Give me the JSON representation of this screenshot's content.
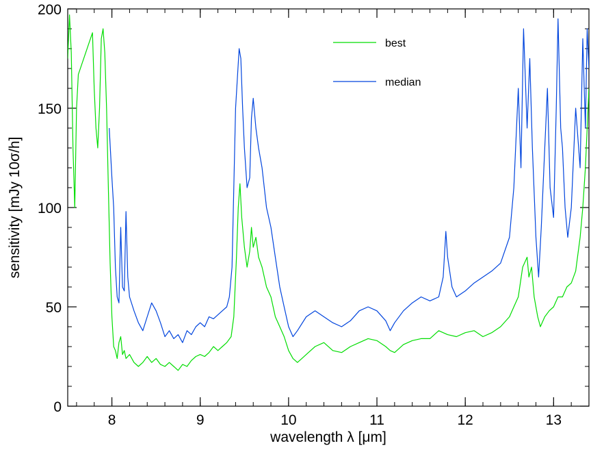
{
  "chart_data": {
    "type": "line",
    "title": "",
    "xlabel": "wavelength λ [μm]",
    "ylabel": "sensitivity [mJy 10σ/h]",
    "xlim": [
      7.5,
      13.4
    ],
    "ylim": [
      0,
      200
    ],
    "x_ticks": [
      8,
      9,
      10,
      11,
      12,
      13
    ],
    "y_ticks": [
      0,
      50,
      100,
      150,
      200
    ],
    "x_minor_step": 0.2,
    "y_minor_step": 10,
    "grid": false,
    "legend": {
      "placement": "top-center"
    },
    "series": [
      {
        "name": "best",
        "color": "#00dd00",
        "points": [
          [
            7.5,
            175
          ],
          [
            7.52,
            197
          ],
          [
            7.54,
            178
          ],
          [
            7.56,
            130
          ],
          [
            7.58,
            100
          ],
          [
            7.6,
            150
          ],
          [
            7.62,
            167
          ],
          [
            7.78,
            188
          ],
          [
            7.8,
            160
          ],
          [
            7.82,
            140
          ],
          [
            7.84,
            130
          ],
          [
            7.86,
            150
          ],
          [
            7.88,
            185
          ],
          [
            7.9,
            190
          ],
          [
            7.92,
            178
          ],
          [
            7.94,
            150
          ],
          [
            7.96,
            110
          ],
          [
            7.98,
            72
          ],
          [
            8.0,
            45
          ],
          [
            8.02,
            30
          ],
          [
            8.04,
            28
          ],
          [
            8.06,
            24
          ],
          [
            8.08,
            32
          ],
          [
            8.1,
            35
          ],
          [
            8.12,
            26
          ],
          [
            8.14,
            28
          ],
          [
            8.16,
            24
          ],
          [
            8.2,
            26
          ],
          [
            8.25,
            22
          ],
          [
            8.3,
            20
          ],
          [
            8.35,
            22
          ],
          [
            8.4,
            25
          ],
          [
            8.45,
            22
          ],
          [
            8.5,
            24
          ],
          [
            8.55,
            21
          ],
          [
            8.6,
            20
          ],
          [
            8.65,
            22
          ],
          [
            8.7,
            20
          ],
          [
            8.75,
            18
          ],
          [
            8.8,
            21
          ],
          [
            8.85,
            20
          ],
          [
            8.9,
            23
          ],
          [
            8.95,
            25
          ],
          [
            9.0,
            26
          ],
          [
            9.05,
            25
          ],
          [
            9.1,
            27
          ],
          [
            9.15,
            30
          ],
          [
            9.2,
            28
          ],
          [
            9.25,
            30
          ],
          [
            9.3,
            32
          ],
          [
            9.35,
            35
          ],
          [
            9.38,
            45
          ],
          [
            9.41,
            75
          ],
          [
            9.43,
            100
          ],
          [
            9.45,
            112
          ],
          [
            9.47,
            95
          ],
          [
            9.5,
            80
          ],
          [
            9.53,
            70
          ],
          [
            9.56,
            78
          ],
          [
            9.58,
            90
          ],
          [
            9.6,
            80
          ],
          [
            9.63,
            85
          ],
          [
            9.66,
            75
          ],
          [
            9.7,
            70
          ],
          [
            9.75,
            60
          ],
          [
            9.8,
            55
          ],
          [
            9.85,
            45
          ],
          [
            9.9,
            40
          ],
          [
            9.95,
            35
          ],
          [
            10.0,
            28
          ],
          [
            10.05,
            24
          ],
          [
            10.1,
            22
          ],
          [
            10.15,
            24
          ],
          [
            10.2,
            26
          ],
          [
            10.3,
            30
          ],
          [
            10.4,
            32
          ],
          [
            10.5,
            28
          ],
          [
            10.6,
            27
          ],
          [
            10.7,
            30
          ],
          [
            10.8,
            32
          ],
          [
            10.9,
            34
          ],
          [
            11.0,
            33
          ],
          [
            11.1,
            30
          ],
          [
            11.15,
            28
          ],
          [
            11.2,
            27
          ],
          [
            11.3,
            31
          ],
          [
            11.4,
            33
          ],
          [
            11.5,
            34
          ],
          [
            11.6,
            34
          ],
          [
            11.7,
            38
          ],
          [
            11.8,
            36
          ],
          [
            11.9,
            35
          ],
          [
            12.0,
            37
          ],
          [
            12.1,
            38
          ],
          [
            12.2,
            35
          ],
          [
            12.3,
            37
          ],
          [
            12.4,
            40
          ],
          [
            12.5,
            45
          ],
          [
            12.55,
            50
          ],
          [
            12.6,
            55
          ],
          [
            12.65,
            70
          ],
          [
            12.7,
            75
          ],
          [
            12.72,
            65
          ],
          [
            12.75,
            70
          ],
          [
            12.78,
            55
          ],
          [
            12.82,
            45
          ],
          [
            12.85,
            40
          ],
          [
            12.9,
            45
          ],
          [
            12.95,
            48
          ],
          [
            13.0,
            50
          ],
          [
            13.05,
            55
          ],
          [
            13.1,
            55
          ],
          [
            13.15,
            60
          ],
          [
            13.2,
            62
          ],
          [
            13.25,
            68
          ],
          [
            13.3,
            85
          ],
          [
            13.33,
            100
          ],
          [
            13.36,
            120
          ],
          [
            13.39,
            150
          ],
          [
            13.4,
            160
          ]
        ]
      },
      {
        "name": "median",
        "color": "#0044dd",
        "points": [
          [
            7.97,
            140
          ],
          [
            8.0,
            115
          ],
          [
            8.02,
            100
          ],
          [
            8.04,
            70
          ],
          [
            8.06,
            55
          ],
          [
            8.08,
            52
          ],
          [
            8.1,
            90
          ],
          [
            8.12,
            60
          ],
          [
            8.14,
            58
          ],
          [
            8.16,
            98
          ],
          [
            8.18,
            65
          ],
          [
            8.2,
            55
          ],
          [
            8.25,
            48
          ],
          [
            8.3,
            42
          ],
          [
            8.35,
            38
          ],
          [
            8.4,
            45
          ],
          [
            8.45,
            52
          ],
          [
            8.5,
            48
          ],
          [
            8.55,
            42
          ],
          [
            8.6,
            35
          ],
          [
            8.65,
            38
          ],
          [
            8.7,
            34
          ],
          [
            8.75,
            36
          ],
          [
            8.8,
            32
          ],
          [
            8.85,
            38
          ],
          [
            8.9,
            36
          ],
          [
            8.95,
            40
          ],
          [
            9.0,
            42
          ],
          [
            9.05,
            40
          ],
          [
            9.1,
            45
          ],
          [
            9.15,
            44
          ],
          [
            9.2,
            46
          ],
          [
            9.25,
            48
          ],
          [
            9.3,
            50
          ],
          [
            9.33,
            55
          ],
          [
            9.36,
            70
          ],
          [
            9.38,
            110
          ],
          [
            9.4,
            150
          ],
          [
            9.42,
            165
          ],
          [
            9.44,
            180
          ],
          [
            9.46,
            175
          ],
          [
            9.48,
            150
          ],
          [
            9.5,
            130
          ],
          [
            9.53,
            110
          ],
          [
            9.56,
            115
          ],
          [
            9.58,
            145
          ],
          [
            9.6,
            155
          ],
          [
            9.63,
            140
          ],
          [
            9.66,
            130
          ],
          [
            9.7,
            120
          ],
          [
            9.75,
            100
          ],
          [
            9.8,
            90
          ],
          [
            9.85,
            75
          ],
          [
            9.9,
            60
          ],
          [
            9.95,
            50
          ],
          [
            10.0,
            40
          ],
          [
            10.05,
            35
          ],
          [
            10.1,
            38
          ],
          [
            10.2,
            45
          ],
          [
            10.3,
            48
          ],
          [
            10.4,
            45
          ],
          [
            10.5,
            42
          ],
          [
            10.6,
            40
          ],
          [
            10.7,
            43
          ],
          [
            10.8,
            48
          ],
          [
            10.9,
            50
          ],
          [
            11.0,
            48
          ],
          [
            11.1,
            43
          ],
          [
            11.15,
            38
          ],
          [
            11.2,
            42
          ],
          [
            11.3,
            48
          ],
          [
            11.4,
            52
          ],
          [
            11.5,
            55
          ],
          [
            11.6,
            53
          ],
          [
            11.7,
            55
          ],
          [
            11.75,
            65
          ],
          [
            11.78,
            88
          ],
          [
            11.8,
            75
          ],
          [
            11.85,
            60
          ],
          [
            11.9,
            55
          ],
          [
            12.0,
            58
          ],
          [
            12.1,
            62
          ],
          [
            12.2,
            65
          ],
          [
            12.3,
            68
          ],
          [
            12.4,
            72
          ],
          [
            12.5,
            85
          ],
          [
            12.55,
            110
          ],
          [
            12.58,
            140
          ],
          [
            12.6,
            160
          ],
          [
            12.63,
            120
          ],
          [
            12.66,
            190
          ],
          [
            12.7,
            140
          ],
          [
            12.73,
            175
          ],
          [
            12.76,
            130
          ],
          [
            12.8,
            85
          ],
          [
            12.83,
            65
          ],
          [
            12.86,
            90
          ],
          [
            12.9,
            130
          ],
          [
            12.93,
            160
          ],
          [
            12.96,
            110
          ],
          [
            13.0,
            95
          ],
          [
            13.03,
            150
          ],
          [
            13.05,
            195
          ],
          [
            13.08,
            140
          ],
          [
            13.1,
            130
          ],
          [
            13.13,
            100
          ],
          [
            13.16,
            85
          ],
          [
            13.2,
            100
          ],
          [
            13.25,
            150
          ],
          [
            13.3,
            120
          ],
          [
            13.33,
            185
          ],
          [
            13.36,
            140
          ],
          [
            13.38,
            190
          ],
          [
            13.4,
            170
          ]
        ]
      }
    ]
  }
}
